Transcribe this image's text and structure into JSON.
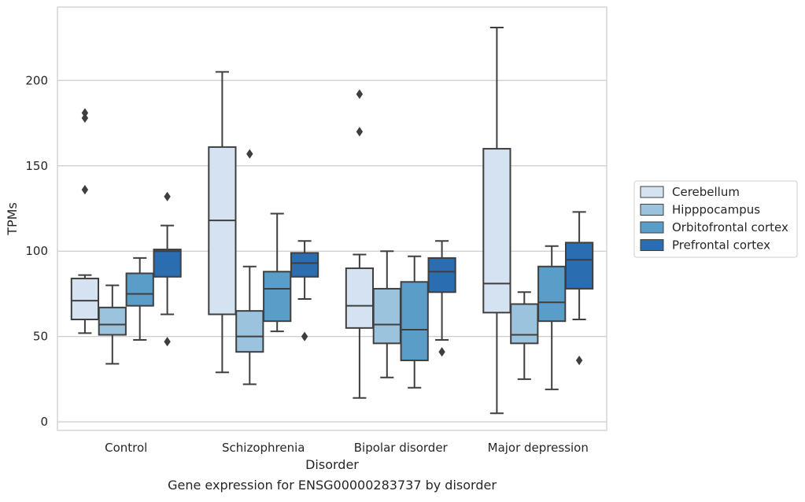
{
  "caption": "Gene expression for ENSG00000283737 by disorder",
  "chart_data": {
    "type": "box",
    "xlabel": "Disorder",
    "ylabel": "TPMs",
    "ylim": [
      -5,
      243
    ],
    "yticks": [
      0,
      50,
      100,
      150,
      200
    ],
    "grid": "horizontal",
    "legend_placement": "right",
    "categories": [
      "Control",
      "Schizophrenia",
      "Bipolar disorder",
      "Major depression"
    ],
    "series": [
      {
        "name": "Cerebellum",
        "color": "#d4e2f1",
        "boxes": [
          {
            "whislo": 52,
            "q1": 60,
            "med": 71,
            "q3": 84,
            "whishi": 86,
            "fliers": [
              181,
              178,
              136
            ]
          },
          {
            "whislo": 29,
            "q1": 63,
            "med": 118,
            "q3": 161,
            "whishi": 205,
            "fliers": []
          },
          {
            "whislo": 14,
            "q1": 55,
            "med": 68,
            "q3": 90,
            "whishi": 98,
            "fliers": [
              192,
              170
            ]
          },
          {
            "whislo": 5,
            "q1": 64,
            "med": 81,
            "q3": 160,
            "whishi": 231,
            "fliers": []
          }
        ]
      },
      {
        "name": "Hipppocampus",
        "color": "#9cc3dd",
        "boxes": [
          {
            "whislo": 34,
            "q1": 51,
            "med": 57,
            "q3": 67,
            "whishi": 80,
            "fliers": []
          },
          {
            "whislo": 22,
            "q1": 41,
            "med": 50,
            "q3": 65,
            "whishi": 91,
            "fliers": [
              157
            ]
          },
          {
            "whislo": 26,
            "q1": 46,
            "med": 57,
            "q3": 78,
            "whishi": 100,
            "fliers": []
          },
          {
            "whislo": 25,
            "q1": 46,
            "med": 51,
            "q3": 69,
            "whishi": 76,
            "fliers": []
          }
        ]
      },
      {
        "name": "Orbitofrontal cortex",
        "color": "#5b9dc9",
        "boxes": [
          {
            "whislo": 48,
            "q1": 68,
            "med": 75,
            "q3": 87,
            "whishi": 96,
            "fliers": []
          },
          {
            "whislo": 53,
            "q1": 59,
            "med": 78,
            "q3": 88,
            "whishi": 122,
            "fliers": []
          },
          {
            "whislo": 20,
            "q1": 36,
            "med": 54,
            "q3": 82,
            "whishi": 97,
            "fliers": []
          },
          {
            "whislo": 19,
            "q1": 59,
            "med": 70,
            "q3": 91,
            "whishi": 103,
            "fliers": []
          }
        ]
      },
      {
        "name": "Prefrontal cortex",
        "color": "#2a6db1",
        "boxes": [
          {
            "whislo": 63,
            "q1": 85,
            "med": 100,
            "q3": 101,
            "whishi": 115,
            "fliers": [
              132,
              47
            ]
          },
          {
            "whislo": 72,
            "q1": 85,
            "med": 93,
            "q3": 99,
            "whishi": 106,
            "fliers": [
              50
            ]
          },
          {
            "whislo": 48,
            "q1": 76,
            "med": 88,
            "q3": 96,
            "whishi": 106,
            "fliers": [
              41
            ]
          },
          {
            "whislo": 60,
            "q1": 78,
            "med": 95,
            "q3": 105,
            "whishi": 123,
            "fliers": [
              36
            ]
          }
        ]
      }
    ]
  }
}
